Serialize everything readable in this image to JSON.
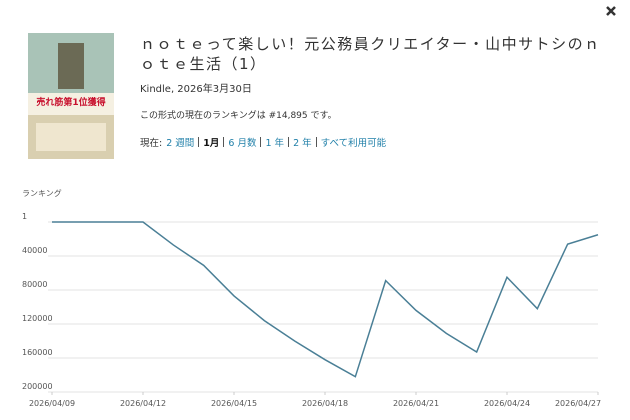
{
  "header": {
    "title": "ｎｏｔｅって楽しい！元公務員クリエイター・山中サトシのｎｏｔｅ生活（1）",
    "subtitle": "Kindle, 2026年3月30日",
    "rank_text": "この形式の現在のランキングは #14,895 です。",
    "range_label": "現在:",
    "ranges": [
      "2 週間",
      "1月",
      "6 月数",
      "1 年",
      "2 年",
      "すべて利用可能"
    ],
    "selected_range": 1
  },
  "cover": {
    "headline": "売れ筋第1位獲得"
  },
  "chart_data": {
    "type": "line",
    "ylabel": "ランキング",
    "x": [
      "2026/04/09",
      "2026/04/10",
      "2026/04/11",
      "2026/04/12",
      "2026/04/13",
      "2026/04/14",
      "2026/04/15",
      "2026/04/16",
      "2026/04/17",
      "2026/04/18",
      "2026/04/19",
      "2026/04/20",
      "2026/04/21",
      "2026/04/22",
      "2026/04/23",
      "2026/04/24",
      "2026/04/25",
      "2026/04/26",
      "2026/04/27"
    ],
    "series": [
      {
        "name": "ランキング",
        "color": "#4a7f96",
        "values": [
          1,
          1,
          1,
          1,
          27000,
          51000,
          87000,
          116000,
          140000,
          162000,
          182000,
          69000,
          104000,
          131000,
          153000,
          65000,
          102000,
          26000,
          15000
        ]
      }
    ],
    "xticks": [
      "2026/04/09",
      "2026/04/12",
      "2026/04/15",
      "2026/04/18",
      "2026/04/21",
      "2026/04/24",
      "2026/04/27"
    ],
    "ylim": [
      1,
      200000
    ],
    "y_reversed": true,
    "yticks": [
      1,
      40000,
      80000,
      120000,
      160000,
      200000
    ],
    "grid": true
  }
}
